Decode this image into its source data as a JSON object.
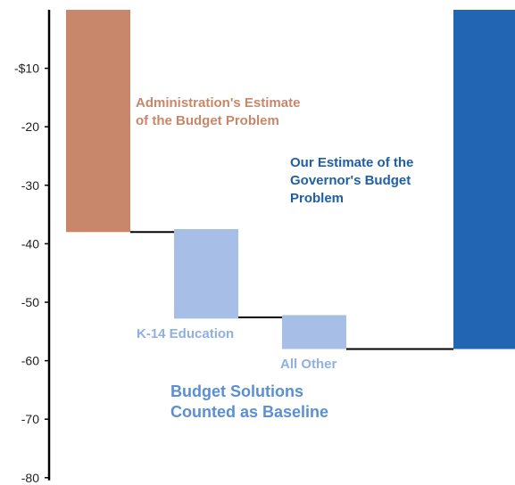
{
  "chart_data": {
    "type": "bar",
    "subtype": "waterfall",
    "title": "",
    "xlabel": "",
    "ylabel": "",
    "ylim": [
      -80,
      0
    ],
    "y_ticks": [
      {
        "value": -10,
        "label": "-$10"
      },
      {
        "value": -20,
        "label": "-20"
      },
      {
        "value": -30,
        "label": "-30"
      },
      {
        "value": -40,
        "label": "-40"
      },
      {
        "value": -50,
        "label": "-50"
      },
      {
        "value": -60,
        "label": "-60"
      },
      {
        "value": -70,
        "label": "-70"
      },
      {
        "value": -80,
        "label": "-80"
      }
    ],
    "grid": false,
    "legend": "none",
    "bars": [
      {
        "start": 0,
        "end": -38,
        "color": "#c8866a"
      },
      {
        "start": -37.5,
        "end": -52.8,
        "color": "#a7bfe6"
      },
      {
        "start": -52.2,
        "end": -58,
        "color": "#a7bfe6"
      },
      {
        "start": 0,
        "end": -58,
        "color": "#2266b3"
      }
    ],
    "connectors": [
      {
        "from_bar": 0,
        "to_bar": 1,
        "value": -38
      },
      {
        "from_bar": 1,
        "to_bar": 2,
        "value": -52.6
      },
      {
        "from_bar": 2,
        "to_bar": 3,
        "value": -58
      }
    ],
    "annotations": [
      {
        "lines": [
          "Administration's Estimate",
          "of the Budget Problem"
        ],
        "color": "#c8866a"
      },
      {
        "lines": [
          "Our Estimate of the",
          "Governor's Budget",
          "Problem"
        ],
        "color": "#1f5fa8"
      },
      {
        "lines": [
          "K-14 Education"
        ],
        "color": "#8fb0e0"
      },
      {
        "lines": [
          "All Other"
        ],
        "color": "#8fb0e0"
      },
      {
        "lines": [
          "Budget Solutions",
          "Counted as Baseline"
        ],
        "color": "#5b8fd4"
      }
    ]
  }
}
